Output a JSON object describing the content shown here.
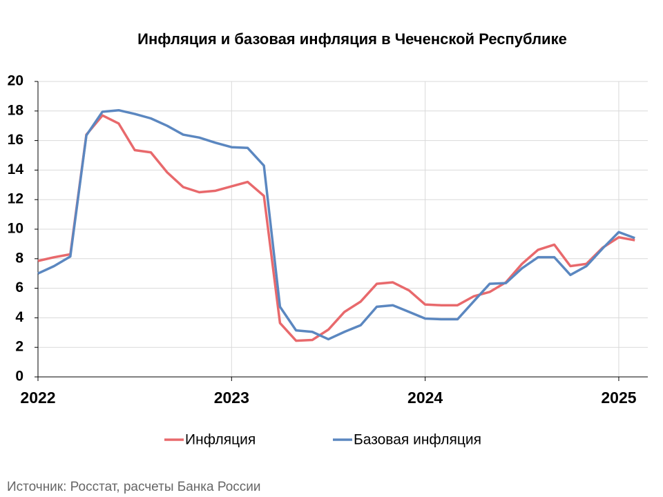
{
  "chart_data": {
    "type": "line",
    "title": "Инфляция и базовая инфляция в Чеченской Республике",
    "source": "Источник: Росстат, расчеты Банка России",
    "x": [
      2022,
      2022.083,
      2022.167,
      2022.25,
      2022.333,
      2022.417,
      2022.5,
      2022.583,
      2022.667,
      2022.75,
      2022.833,
      2022.917,
      2023,
      2023.083,
      2023.167,
      2023.25,
      2023.333,
      2023.417,
      2023.5,
      2023.583,
      2023.667,
      2023.75,
      2023.833,
      2023.917,
      2024,
      2024.083,
      2024.167,
      2024.25,
      2024.333,
      2024.417,
      2024.5,
      2024.583,
      2024.667,
      2024.75,
      2024.833,
      2024.917,
      2025,
      2025.083
    ],
    "series": [
      {
        "name": "Инфляция",
        "color": "#e8696c",
        "values": [
          7.85,
          8.1,
          8.3,
          16.4,
          17.7,
          17.15,
          15.35,
          15.2,
          13.85,
          12.85,
          12.5,
          12.6,
          12.9,
          13.2,
          12.25,
          3.65,
          2.45,
          2.5,
          3.2,
          4.4,
          5.1,
          6.3,
          6.4,
          5.85,
          4.9,
          4.85,
          4.85,
          5.45,
          5.75,
          6.4,
          7.65,
          8.6,
          8.95,
          7.5,
          7.65,
          8.75,
          9.45,
          9.25
        ]
      },
      {
        "name": "Базовая инфляция",
        "color": "#5b87c0",
        "values": [
          7.0,
          7.5,
          8.15,
          16.35,
          17.95,
          18.05,
          17.8,
          17.5,
          17.0,
          16.4,
          16.2,
          15.85,
          15.55,
          15.5,
          14.3,
          4.75,
          3.15,
          3.05,
          2.55,
          3.05,
          3.5,
          4.75,
          4.85,
          4.4,
          3.95,
          3.9,
          3.9,
          5.1,
          6.3,
          6.35,
          7.35,
          8.1,
          8.1,
          6.9,
          7.5,
          8.7,
          9.8,
          9.4
        ]
      }
    ],
    "xlim": [
      2022,
      2025.15
    ],
    "xticks": [
      2022,
      2023,
      2024,
      2025
    ],
    "ylim": [
      0,
      20
    ],
    "yticks": [
      0,
      2,
      4,
      6,
      8,
      10,
      12,
      14,
      16,
      18,
      20
    ],
    "grid": true
  }
}
